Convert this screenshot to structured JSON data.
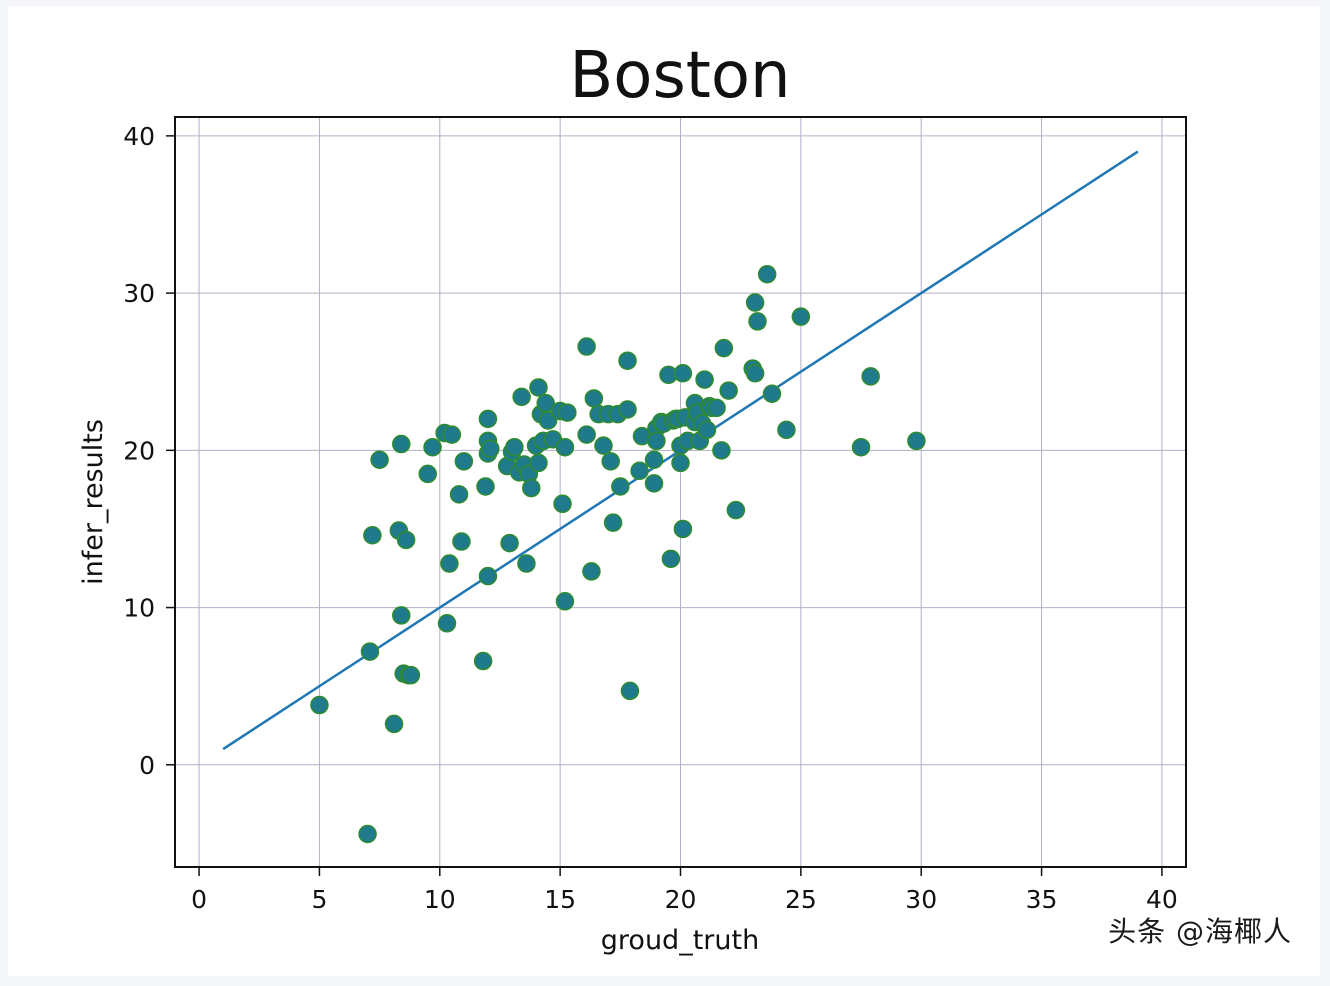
{
  "chart_data": {
    "type": "scatter",
    "title": "Boston",
    "xlabel": "groud_truth",
    "ylabel": "infer_results",
    "xlim": [
      -1,
      41
    ],
    "ylim": [
      -6.5,
      41.2
    ],
    "xticks": [
      "0",
      "5",
      "10",
      "15",
      "20",
      "25",
      "30",
      "35",
      "40"
    ],
    "yticks": [
      "0",
      "10",
      "20",
      "30",
      "40"
    ],
    "grid": true,
    "colors": {
      "points": "#1f7a8c",
      "point_edge": "#2e8b2e",
      "line": "#1f77b4",
      "grid": "#b0b0c8"
    },
    "series": [
      {
        "type": "scatter",
        "x": [
          5.0,
          7.0,
          7.1,
          7.2,
          7.5,
          8.1,
          8.3,
          8.4,
          8.4,
          8.5,
          8.6,
          8.7,
          8.8,
          9.5,
          9.7,
          10.2,
          10.3,
          10.4,
          10.5,
          10.8,
          10.9,
          11.0,
          11.8,
          11.9,
          12.0,
          12.0,
          12.0,
          12.0,
          12.1,
          12.8,
          12.9,
          13.0,
          13.1,
          13.3,
          13.4,
          13.5,
          13.6,
          13.7,
          13.8,
          14.0,
          14.1,
          14.1,
          14.2,
          14.3,
          14.4,
          14.5,
          14.7,
          15.0,
          15.1,
          15.2,
          15.2,
          15.3,
          16.1,
          16.1,
          16.3,
          16.4,
          16.6,
          16.8,
          17.0,
          17.1,
          17.2,
          17.4,
          17.5,
          17.8,
          17.8,
          17.9,
          18.3,
          18.4,
          18.9,
          18.9,
          19.0,
          19.0,
          19.2,
          19.3,
          19.5,
          19.6,
          19.7,
          19.8,
          19.9,
          20.0,
          20.0,
          20.1,
          20.1,
          20.2,
          20.3,
          20.6,
          20.6,
          20.7,
          20.8,
          20.9,
          21.0,
          21.1,
          21.2,
          21.3,
          21.5,
          21.7,
          21.8,
          22.0,
          22.3,
          23.0,
          23.1,
          23.1,
          23.2,
          23.6,
          23.8,
          24.4,
          25.0,
          27.5,
          27.9,
          29.8
        ],
        "y": [
          3.8,
          -4.4,
          7.2,
          14.6,
          19.4,
          2.6,
          14.9,
          20.4,
          9.5,
          5.8,
          14.3,
          5.7,
          5.7,
          18.5,
          20.2,
          21.1,
          9.0,
          12.8,
          21.0,
          17.2,
          14.2,
          19.3,
          6.6,
          17.7,
          12.0,
          20.6,
          19.8,
          22.0,
          20.1,
          19.0,
          14.1,
          19.9,
          20.2,
          18.6,
          23.4,
          19.1,
          12.8,
          18.5,
          17.6,
          20.3,
          19.2,
          24.0,
          22.3,
          20.6,
          23.0,
          21.9,
          20.7,
          22.5,
          16.6,
          20.2,
          10.4,
          22.4,
          26.6,
          21.0,
          12.3,
          23.3,
          22.3,
          20.3,
          22.3,
          19.3,
          15.4,
          22.3,
          17.7,
          22.6,
          25.7,
          4.7,
          18.7,
          20.9,
          17.9,
          19.4,
          21.4,
          20.6,
          21.8,
          21.7,
          24.8,
          13.1,
          21.9,
          22.0,
          22.0,
          20.3,
          19.2,
          15.0,
          24.9,
          22.1,
          20.6,
          21.8,
          23.0,
          22.4,
          20.6,
          21.7,
          24.5,
          21.3,
          22.8,
          22.7,
          22.7,
          20.0,
          26.5,
          23.8,
          16.2,
          25.2,
          24.9,
          29.4,
          28.2,
          31.2,
          23.6,
          21.3,
          28.5,
          20.2,
          24.7,
          20.6
        ]
      },
      {
        "type": "line",
        "x": [
          1,
          39
        ],
        "y": [
          1,
          39
        ]
      }
    ]
  },
  "watermark": "头条 @海椰人"
}
